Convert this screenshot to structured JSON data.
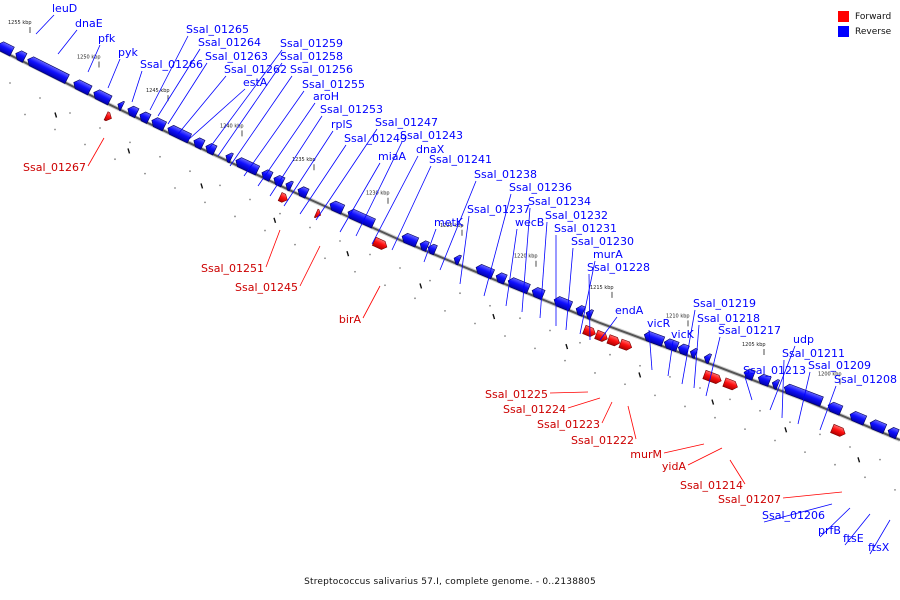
{
  "colors": {
    "forward": "#ff0000",
    "reverse": "#0000ff",
    "backbone": "#555555"
  },
  "legend": [
    {
      "label": "Forward",
      "color": "#ff0000"
    },
    {
      "label": "Reverse",
      "color": "#0000ff"
    }
  ],
  "caption": "Streptococcus salivarius 57.I, complete genome. - 0..2138805",
  "kbp_labels": [
    "1255 kbp",
    "1250 kbp",
    "1245 kbp",
    "1240 kbp",
    "1235 kbp",
    "1230 kbp",
    "1225 kbp",
    "1220 kbp",
    "1215 kbp",
    "1210 kbp",
    "1205 kbp",
    "1200 kbp"
  ],
  "reverse_genes": [
    "leuD",
    "dnaE",
    "pfk",
    "pyk",
    "Ssal_01266",
    "Ssal_01265",
    "Ssal_01264",
    "Ssal_01263",
    "Ssal_01262",
    "estA",
    "Ssal_01259",
    "Ssal_01258",
    "Ssal_01256",
    "Ssal_01255",
    "aroH",
    "Ssal_01253",
    "rplS",
    "Ssal_01249",
    "Ssal_01247",
    "miaA",
    "Ssal_01243",
    "dnaX",
    "Ssal_01241",
    "metK",
    "Ssal_01238",
    "Ssal_01237",
    "Ssal_01236",
    "wecB",
    "Ssal_01234",
    "Ssal_01232",
    "Ssal_01231",
    "Ssal_01230",
    "murA",
    "Ssal_01228",
    "endA",
    "vicR",
    "vicK",
    "Ssal_01219",
    "Ssal_01218",
    "Ssal_01217",
    "Ssal_01213",
    "udp",
    "Ssal_01211",
    "Ssal_01209",
    "Ssal_01208",
    "Ssal_01206",
    "prfB",
    "ftsE",
    "ftsX"
  ],
  "forward_genes": [
    "Ssal_01267",
    "Ssal_01251",
    "Ssal_01245",
    "birA",
    "Ssal_01225",
    "Ssal_01224",
    "Ssal_01223",
    "Ssal_01222",
    "murM",
    "yidA",
    "Ssal_01214",
    "Ssal_01207"
  ]
}
